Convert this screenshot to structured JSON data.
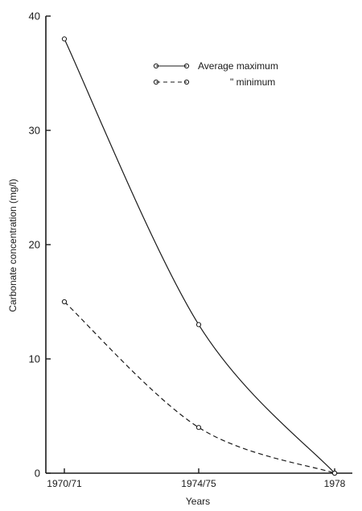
{
  "colors": {
    "ink": "#1a1a1a",
    "background": "#ffffff"
  },
  "chart_data": {
    "type": "line",
    "xlabel": "Years",
    "ylabel": "Carbonate concentration (mg/l)",
    "categories": [
      "1970/71",
      "1974/75",
      "1978"
    ],
    "ylim": [
      0,
      40
    ],
    "yticks": [
      0,
      10,
      20,
      30,
      40
    ],
    "grid": false,
    "legend_position": "top-right",
    "series": [
      {
        "name": "Average maximum",
        "line_style": "solid",
        "marker": "open-circle",
        "values": [
          38,
          13,
          0
        ]
      },
      {
        "name": "\" minimum",
        "line_style": "dashed",
        "marker": "open-circle",
        "values": [
          15,
          4,
          0
        ]
      }
    ]
  }
}
